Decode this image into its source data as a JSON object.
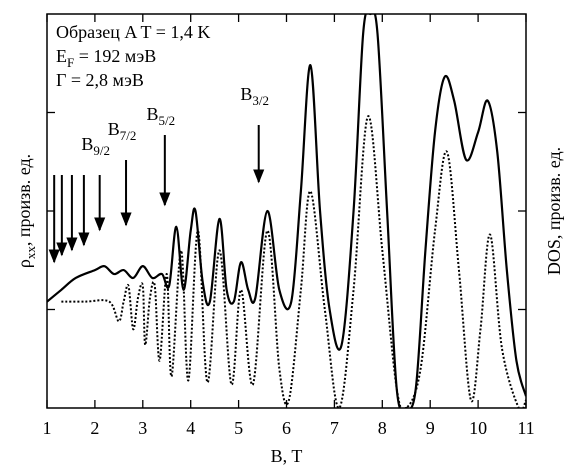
{
  "chart_data": {
    "type": "line",
    "annotations": [
      {
        "text": "Образец A   T = 1,4 K"
      },
      {
        "text": "E",
        "sub": "F",
        "tail": " = 192 мэВ"
      },
      {
        "text": "Γ = 2,8 мэВ"
      }
    ],
    "xlabel": "B, T",
    "ylabel": {
      "text": "ρ",
      "sub": "xx",
      "tail": ", произв. ед."
    },
    "y2label": "DOS, произв. ед.",
    "xlim": [
      1,
      11
    ],
    "xticks": [
      1,
      2,
      3,
      4,
      5,
      6,
      7,
      8,
      9,
      10,
      11
    ],
    "ylim": [
      0,
      100
    ],
    "yticks": [
      25,
      50,
      75
    ],
    "series": [
      {
        "color": "#000000",
        "dash": "solid",
        "x": [
          1,
          1.3,
          1.6,
          2,
          2.2,
          2.4,
          2.6,
          2.8,
          3,
          3.2,
          3.4,
          3.55,
          3.7,
          3.85,
          4,
          4.1,
          4.25,
          4.4,
          4.6,
          4.75,
          4.9,
          5.05,
          5.2,
          5.35,
          5.6,
          5.85,
          6.1,
          6.3,
          6.5,
          6.7,
          6.9,
          7.15,
          7.4,
          7.6,
          7.75,
          7.9,
          8.1,
          8.3,
          8.5,
          8.7,
          8.9,
          9.1,
          9.3,
          9.5,
          9.75,
          10,
          10.2,
          10.4,
          10.6,
          10.8,
          11
        ],
        "values": [
          27,
          30,
          33,
          35,
          36,
          34,
          35,
          33,
          36,
          33,
          34,
          31,
          46,
          30,
          45,
          50,
          32,
          27,
          48,
          30,
          27,
          37,
          30,
          28,
          50,
          30,
          27,
          55,
          87,
          50,
          25,
          16,
          50,
          95,
          100,
          95,
          50,
          5,
          0,
          5,
          40,
          70,
          84,
          78,
          63,
          70,
          78,
          65,
          35,
          12,
          3
        ]
      },
      {
        "color": "#000000",
        "dash": "dotted",
        "x": [
          1.3,
          1.8,
          2.3,
          2.5,
          2.6,
          2.7,
          2.8,
          2.9,
          3,
          3.05,
          3.15,
          3.25,
          3.35,
          3.5,
          3.6,
          3.8,
          3.95,
          4.15,
          4.35,
          4.6,
          4.85,
          5.05,
          5.3,
          5.6,
          5.85,
          6.05,
          6.3,
          6.5,
          6.8,
          7.1,
          7.4,
          7.7,
          8.0,
          8.3,
          8.5,
          8.8,
          9.1,
          9.35,
          9.6,
          9.85,
          10.05,
          10.25,
          10.5,
          10.85,
          11
        ],
        "values": [
          27,
          27,
          27,
          22,
          27,
          31,
          20,
          28,
          31,
          16,
          28,
          31,
          12,
          34,
          8,
          40,
          7,
          45,
          6.5,
          40,
          6,
          30,
          6,
          45,
          10,
          2,
          30,
          55,
          25,
          0,
          30,
          74,
          40,
          5,
          0,
          10,
          45,
          65,
          35,
          2,
          20,
          44,
          15,
          0,
          2
        ]
      }
    ],
    "arrows": [
      {
        "x": 1.15
      },
      {
        "x": 1.31
      },
      {
        "x": 1.52
      },
      {
        "x": 1.77
      },
      {
        "x": 2.1,
        "label": {
          "text": "B",
          "sub": "9/2"
        }
      },
      {
        "x": 2.65,
        "label": {
          "text": "B",
          "sub": "7/2"
        }
      },
      {
        "x": 3.46,
        "label": {
          "text": "B",
          "sub": "5/2"
        }
      },
      {
        "x": 5.42,
        "label": {
          "text": "B",
          "sub": "3/2"
        }
      }
    ]
  }
}
